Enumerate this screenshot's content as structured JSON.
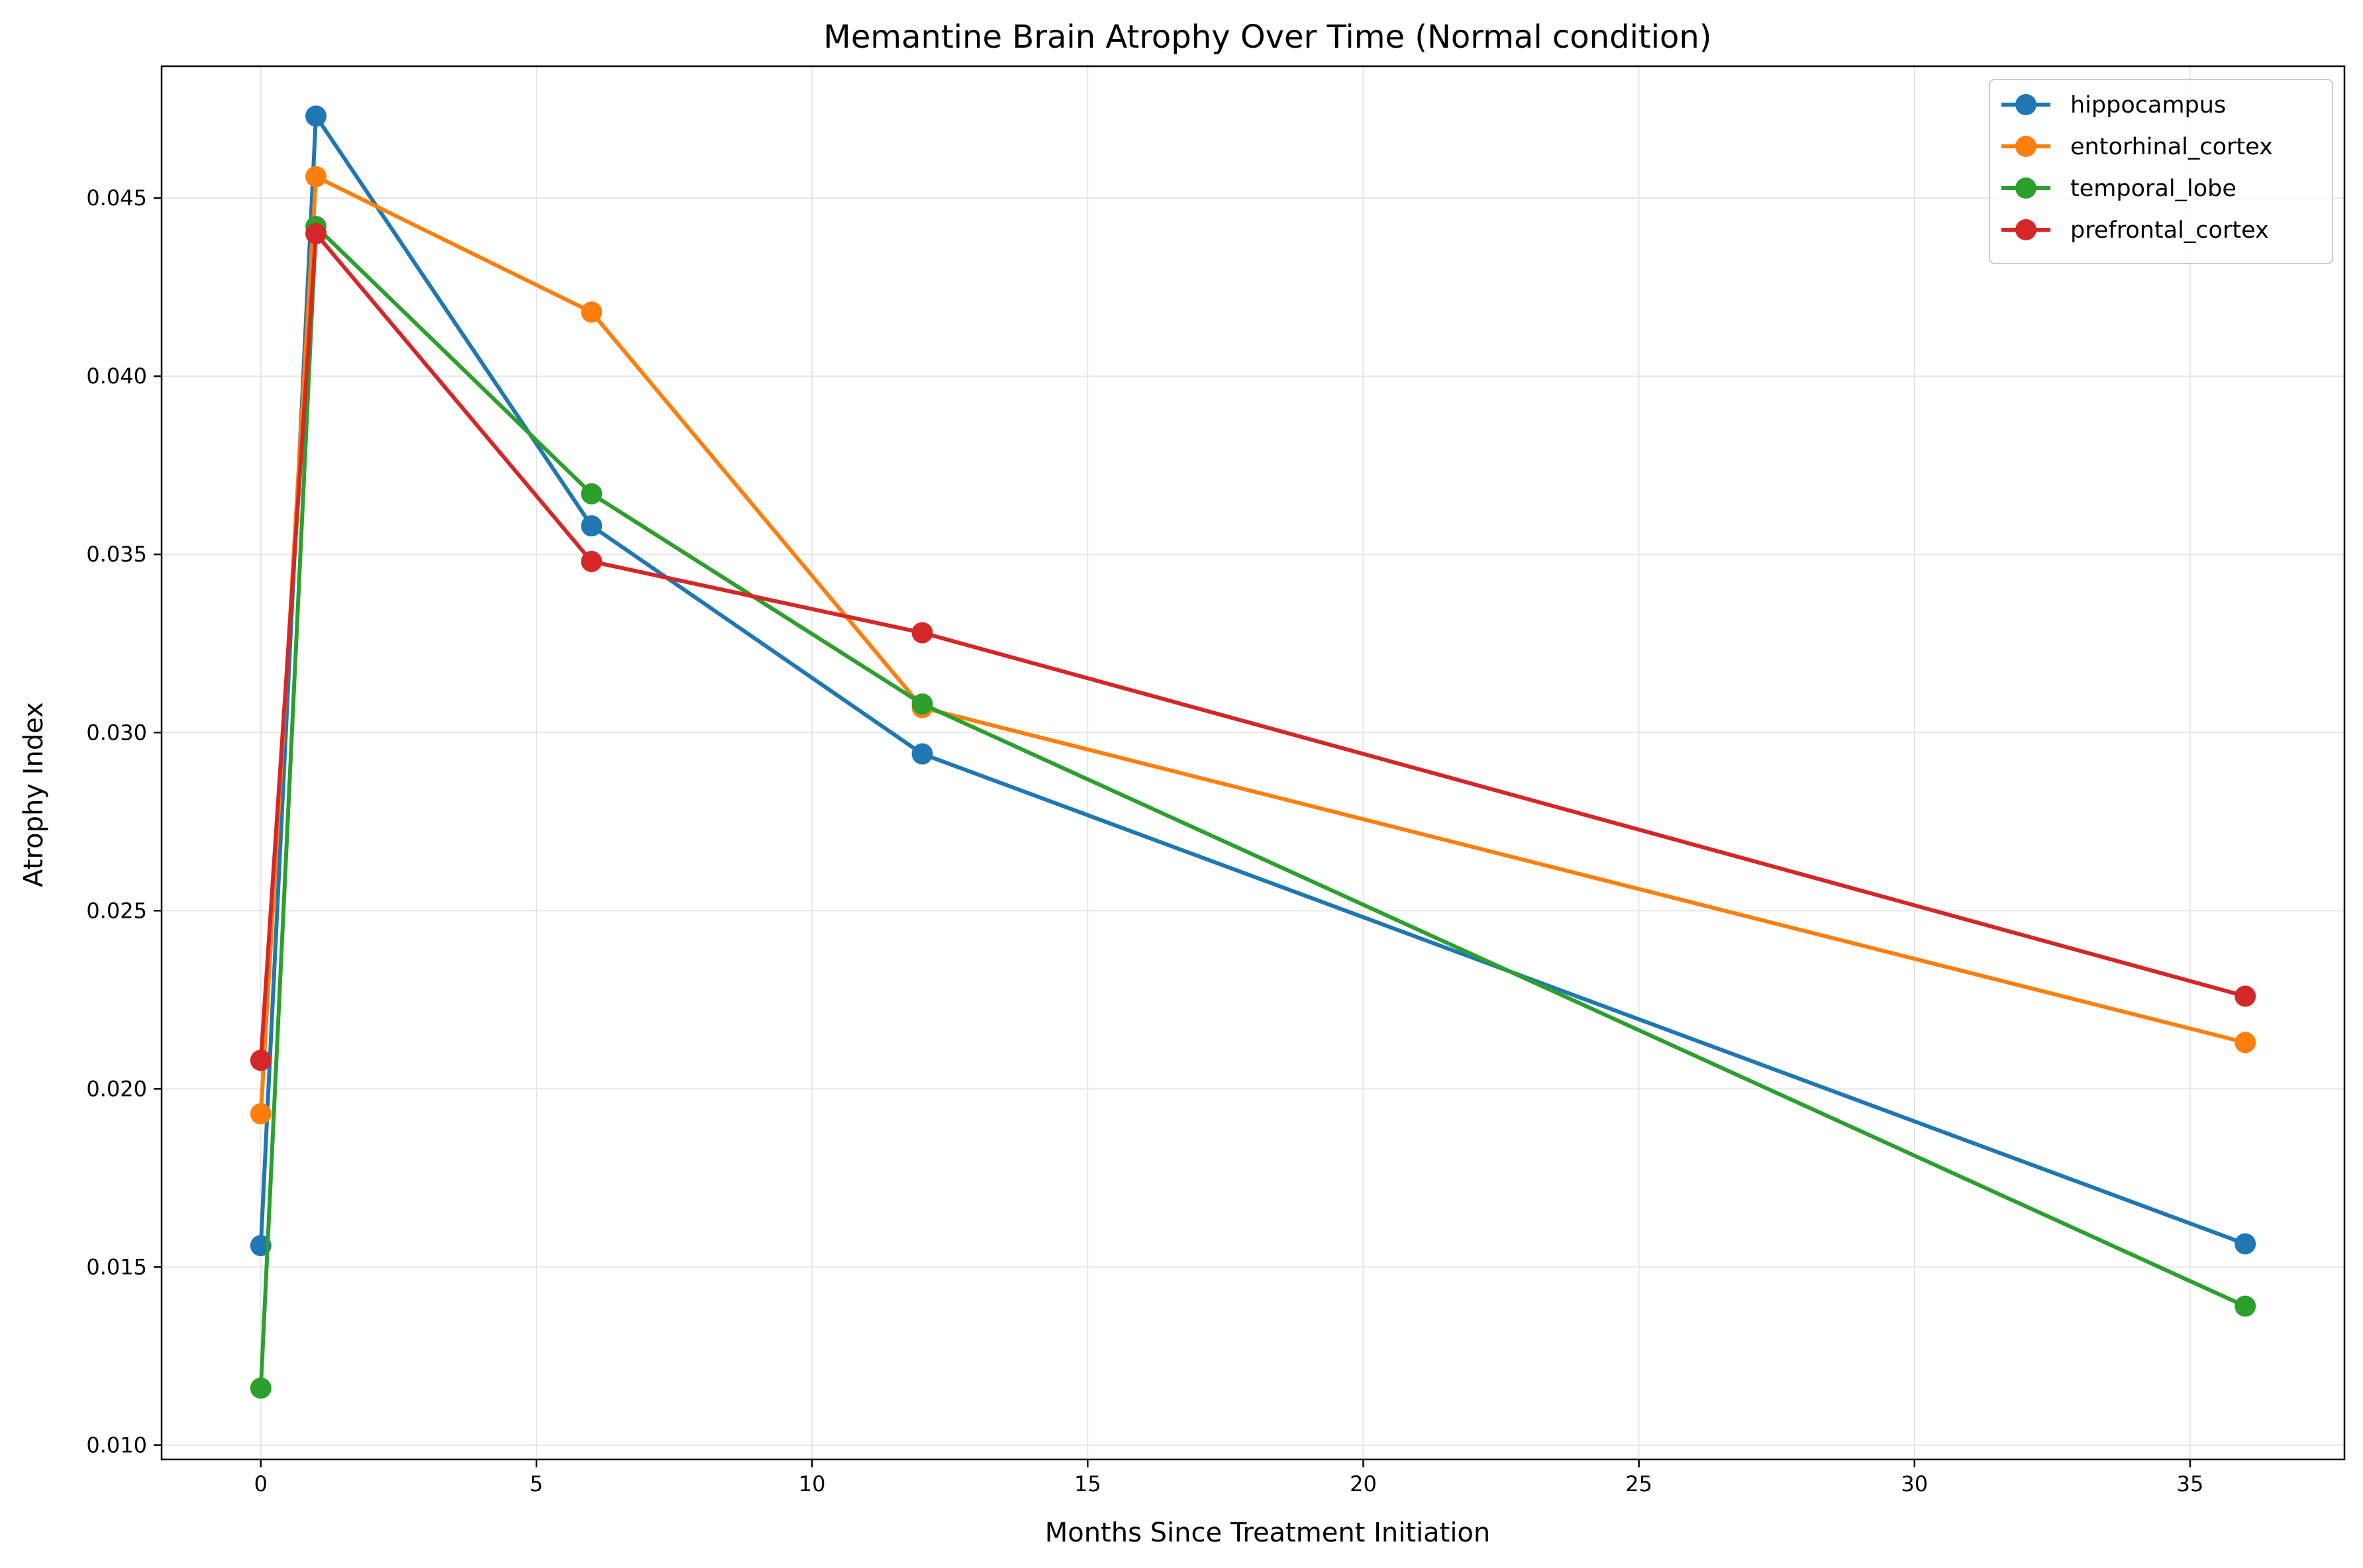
{
  "chart_data": {
    "type": "line",
    "title": "Memantine Brain Atrophy Over Time (Normal condition)",
    "xlabel": "Months Since Treatment Initiation",
    "ylabel": "Atrophy Index",
    "x": [
      0,
      1,
      6,
      12,
      36
    ],
    "xlim": [
      -1.8,
      37.8
    ],
    "ylim": [
      0.0096,
      0.0487
    ],
    "xticks": [
      0,
      5,
      10,
      15,
      20,
      25,
      30,
      35
    ],
    "yticks": [
      0.01,
      0.015,
      0.02,
      0.025,
      0.03,
      0.035,
      0.04,
      0.045
    ],
    "xtick_labels": [
      "0",
      "5",
      "10",
      "15",
      "20",
      "25",
      "30",
      "35"
    ],
    "ytick_labels": [
      "0.010",
      "0.015",
      "0.020",
      "0.025",
      "0.030",
      "0.035",
      "0.040",
      "0.045"
    ],
    "grid": true,
    "legend_position": "top-right",
    "series": [
      {
        "name": "hippocampus",
        "color": "#1f77b4",
        "values": [
          0.0156,
          0.0473,
          0.0358,
          0.0294,
          0.01565
        ]
      },
      {
        "name": "entorhinal_cortex",
        "color": "#ff7f0e",
        "values": [
          0.0193,
          0.0456,
          0.0418,
          0.0307,
          0.0213
        ]
      },
      {
        "name": "temporal_lobe",
        "color": "#2ca02c",
        "values": [
          0.0116,
          0.0442,
          0.0367,
          0.0308,
          0.0139
        ]
      },
      {
        "name": "prefrontal_cortex",
        "color": "#d62728",
        "values": [
          0.0208,
          0.044,
          0.0348,
          0.0328,
          0.0226
        ]
      }
    ]
  }
}
